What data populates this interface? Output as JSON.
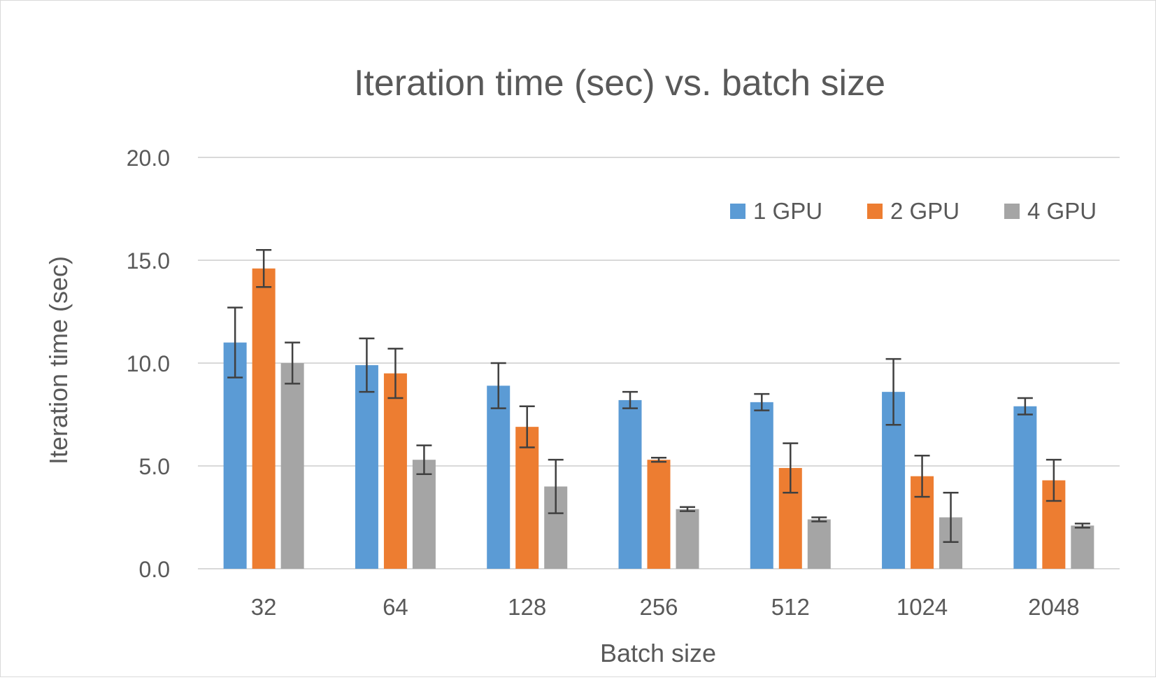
{
  "chart_data": {
    "type": "bar",
    "title": "Iteration time (sec) vs. batch size",
    "xlabel": "Batch size",
    "ylabel": "Iteration time (sec)",
    "ylim": [
      0,
      20
    ],
    "yticks": [
      "0.0",
      "5.0",
      "10.0",
      "15.0",
      "20.0"
    ],
    "ytick_values": [
      0,
      5,
      10,
      15,
      20
    ],
    "grid": true,
    "legend_position": "top-right",
    "categories": [
      "32",
      "64",
      "128",
      "256",
      "512",
      "1024",
      "2048"
    ],
    "series": [
      {
        "name": "1 GPU",
        "color": "#5b9bd5",
        "values": [
          11.0,
          9.9,
          8.9,
          8.2,
          8.1,
          8.6,
          7.9
        ],
        "errors": [
          1.7,
          1.3,
          1.1,
          0.4,
          0.4,
          1.6,
          0.4
        ]
      },
      {
        "name": "2 GPU",
        "color": "#ed7d31",
        "values": [
          14.6,
          9.5,
          6.9,
          5.3,
          4.9,
          4.5,
          4.3
        ],
        "errors": [
          0.9,
          1.2,
          1.0,
          0.1,
          1.2,
          1.0,
          1.0
        ]
      },
      {
        "name": "4 GPU",
        "color": "#a5a5a5",
        "values": [
          10.0,
          5.3,
          4.0,
          2.9,
          2.4,
          2.5,
          2.1
        ],
        "errors": [
          1.0,
          0.7,
          1.3,
          0.1,
          0.1,
          1.2,
          0.1
        ]
      }
    ]
  }
}
